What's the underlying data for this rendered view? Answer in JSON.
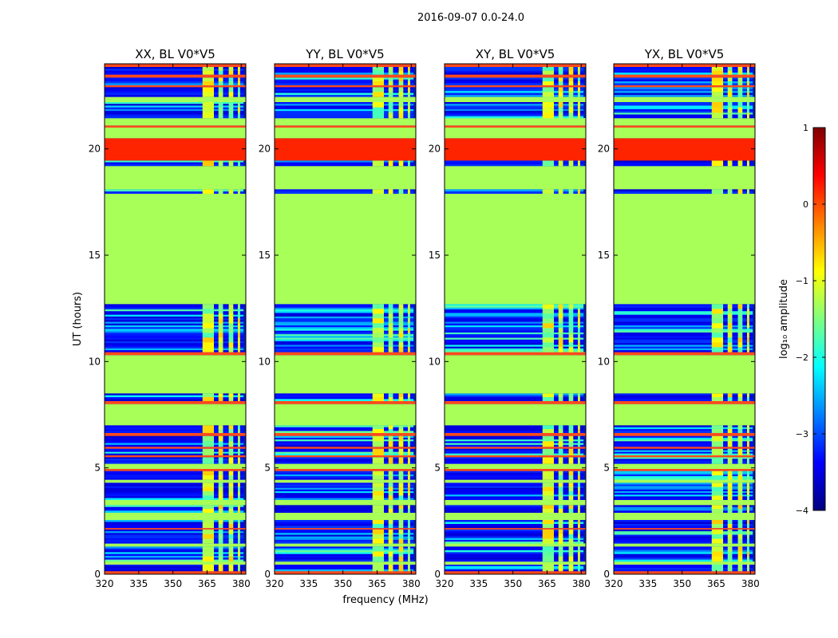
{
  "chart_data": {
    "type": "heatmap",
    "suptitle": "2016-09-07 0.0-24.0",
    "xlabel": "frequency (MHz)",
    "ylabel": "UT (hours)",
    "xlim": [
      320,
      382
    ],
    "ylim": [
      0,
      24
    ],
    "xticks": [
      "320",
      "335",
      "350",
      "365",
      "380"
    ],
    "yticks": [
      "0",
      "5",
      "10",
      "15",
      "20"
    ],
    "colorbar": {
      "label": "log₁₀ amplitude",
      "min": -4,
      "max": 1,
      "ticks": [
        "1",
        "0",
        "−1",
        "−2",
        "−3",
        "−4"
      ],
      "colormap": "jet"
    },
    "panels": [
      {
        "title": "XX, BL V0*V5"
      },
      {
        "title": "YY, BL V0*V5"
      },
      {
        "title": "XY, BL V0*V5"
      },
      {
        "title": "YX, BL V0*V5"
      }
    ],
    "flagged_value_log10": -1.3,
    "time_bands": [
      {
        "t0": 0.0,
        "t1": 0.15,
        "kind": "hot"
      },
      {
        "t0": 0.15,
        "t1": 0.45,
        "kind": "noise"
      },
      {
        "t0": 0.45,
        "t1": 0.6,
        "kind": "flag"
      },
      {
        "t0": 0.6,
        "t1": 1.3,
        "kind": "noise"
      },
      {
        "t0": 1.3,
        "t1": 1.45,
        "kind": "flag"
      },
      {
        "t0": 1.45,
        "t1": 2.1,
        "kind": "noise"
      },
      {
        "t0": 2.1,
        "t1": 2.18,
        "kind": "hot"
      },
      {
        "t0": 2.18,
        "t1": 2.55,
        "kind": "noise"
      },
      {
        "t0": 2.55,
        "t1": 2.9,
        "kind": "flag"
      },
      {
        "t0": 2.9,
        "t1": 3.25,
        "kind": "noise"
      },
      {
        "t0": 3.25,
        "t1": 3.5,
        "kind": "flag"
      },
      {
        "t0": 3.5,
        "t1": 4.3,
        "kind": "noise"
      },
      {
        "t0": 4.3,
        "t1": 4.45,
        "kind": "flag"
      },
      {
        "t0": 4.45,
        "t1": 4.85,
        "kind": "noise"
      },
      {
        "t0": 4.85,
        "t1": 4.95,
        "kind": "hot"
      },
      {
        "t0": 4.95,
        "t1": 5.2,
        "kind": "flag"
      },
      {
        "t0": 5.2,
        "t1": 5.5,
        "kind": "noise"
      },
      {
        "t0": 5.5,
        "t1": 5.6,
        "kind": "hot"
      },
      {
        "t0": 5.6,
        "t1": 5.9,
        "kind": "noise"
      },
      {
        "t0": 5.9,
        "t1": 6.0,
        "kind": "hot"
      },
      {
        "t0": 6.0,
        "t1": 6.5,
        "kind": "noise"
      },
      {
        "t0": 6.5,
        "t1": 6.65,
        "kind": "hot"
      },
      {
        "t0": 6.65,
        "t1": 7.0,
        "kind": "noise"
      },
      {
        "t0": 7.0,
        "t1": 8.0,
        "kind": "flag"
      },
      {
        "t0": 8.0,
        "t1": 8.15,
        "kind": "hot"
      },
      {
        "t0": 8.15,
        "t1": 8.5,
        "kind": "noise"
      },
      {
        "t0": 8.5,
        "t1": 10.3,
        "kind": "flag"
      },
      {
        "t0": 10.3,
        "t1": 10.45,
        "kind": "hot"
      },
      {
        "t0": 10.45,
        "t1": 12.7,
        "kind": "noise"
      },
      {
        "t0": 12.7,
        "t1": 17.9,
        "kind": "flag"
      },
      {
        "t0": 17.9,
        "t1": 18.1,
        "kind": "noise"
      },
      {
        "t0": 18.1,
        "t1": 19.2,
        "kind": "flag"
      },
      {
        "t0": 19.2,
        "t1": 19.45,
        "kind": "noise"
      },
      {
        "t0": 19.45,
        "t1": 20.5,
        "kind": "orange"
      },
      {
        "t0": 20.5,
        "t1": 21.0,
        "kind": "flag"
      },
      {
        "t0": 21.0,
        "t1": 21.1,
        "kind": "hot"
      },
      {
        "t0": 21.1,
        "t1": 21.45,
        "kind": "flag"
      },
      {
        "t0": 21.45,
        "t1": 22.2,
        "kind": "noise"
      },
      {
        "t0": 22.2,
        "t1": 22.45,
        "kind": "flag"
      },
      {
        "t0": 22.45,
        "t1": 22.9,
        "kind": "noise"
      },
      {
        "t0": 22.9,
        "t1": 23.0,
        "kind": "hot"
      },
      {
        "t0": 23.0,
        "t1": 23.35,
        "kind": "noise"
      },
      {
        "t0": 23.35,
        "t1": 23.5,
        "kind": "hot"
      },
      {
        "t0": 23.5,
        "t1": 23.85,
        "kind": "noise"
      },
      {
        "t0": 23.85,
        "t1": 24.0,
        "kind": "hot"
      }
    ],
    "rfi_freq_ranges_mhz": [
      [
        363,
        368
      ],
      [
        370,
        372
      ],
      [
        374.5,
        376.5
      ],
      [
        378.5,
        379.5
      ]
    ],
    "band_edge_mhz": [
      381,
      382
    ]
  }
}
